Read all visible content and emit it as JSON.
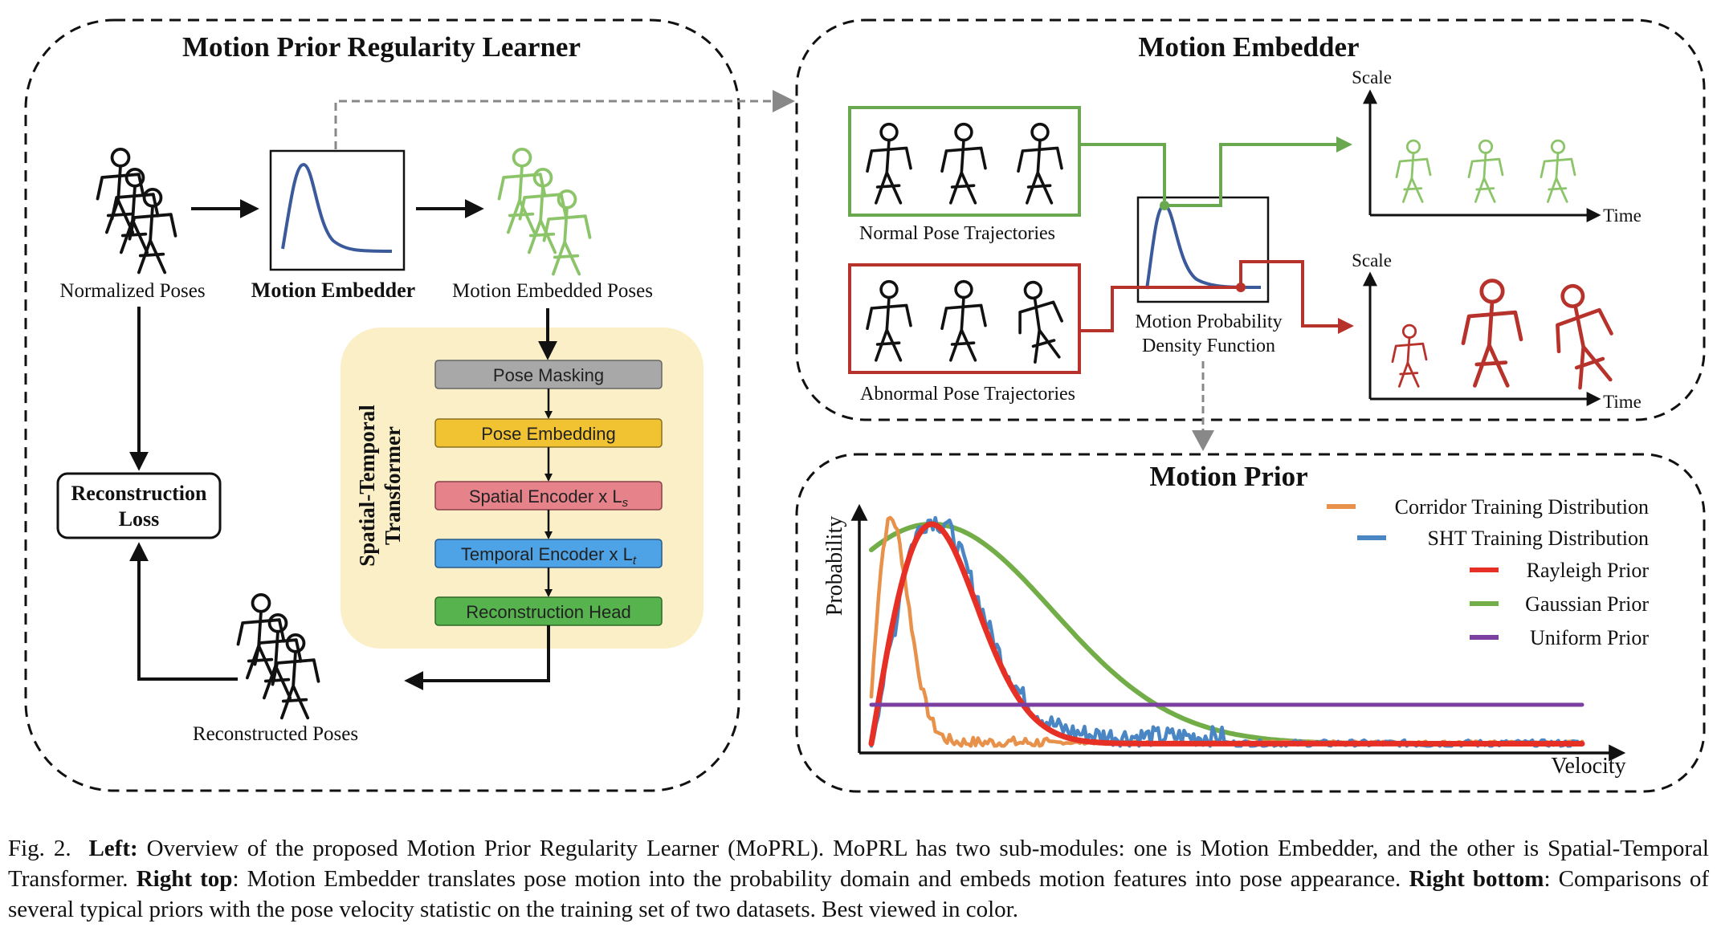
{
  "left_panel": {
    "title": "Motion Prior Regularity Learner",
    "normalized_poses": "Normalized Poses",
    "motion_embedder": "Motion Embedder",
    "motion_embedded_poses": "Motion Embedded Poses",
    "reconstruction_loss_line1": "Reconstruction",
    "reconstruction_loss_line2": "Loss",
    "reconstructed_poses": "Reconstructed Poses",
    "transformer_line1": "Spatial-Temporal",
    "transformer_line2": "Transformer",
    "blocks": [
      {
        "label": "Pose Masking",
        "sub": "",
        "color": "#a8a8a8"
      },
      {
        "label": "Pose Embedding",
        "sub": "",
        "color": "#f1c232"
      },
      {
        "label": "Spatial Encoder x L",
        "sub": "s",
        "color": "#e6838a"
      },
      {
        "label": "Temporal Encoder x L",
        "sub": "t",
        "color": "#4ea3e6"
      },
      {
        "label": "Reconstruction Head",
        "sub": "",
        "color": "#57b34d"
      }
    ]
  },
  "right_top": {
    "title": "Motion Embedder",
    "normal": "Normal Pose Trajectories",
    "abnormal": "Abnormal Pose Trajectories",
    "pdf_line1": "Motion Probability",
    "pdf_line2": "Density Function",
    "scale": "Scale",
    "time": "Time"
  },
  "right_bottom": {
    "title": "Motion Prior",
    "ylabel": "Probability",
    "xlabel": "Velocity"
  },
  "chart_data": {
    "type": "line",
    "title": "Motion Prior",
    "xlabel": "Velocity",
    "ylabel": "Probability",
    "legend_position": "top-right",
    "series": [
      {
        "name": "Corridor Training Distribution",
        "color": "#e8914a"
      },
      {
        "name": "SHT Training Distribution",
        "color": "#4a86c4"
      },
      {
        "name": "Rayleigh Prior",
        "color": "#e63025"
      },
      {
        "name": "Gaussian Prior",
        "color": "#72ad47"
      },
      {
        "name": "Uniform Prior",
        "color": "#7b3fa1"
      }
    ]
  },
  "caption": {
    "fig": "Fig. 2.",
    "left_label": "Left:",
    "left_text": "Overview of the proposed Motion Prior Regularity Learner (MoPRL). MoPRL has two sub-modules: one is Motion Embedder, and the other is Spatial-Temporal Transformer.",
    "right_top_label": "Right top",
    "right_top_text": ": Motion Embedder translates pose motion into the probability domain and embeds motion features into pose appearance.",
    "right_bottom_label": "Right bottom",
    "right_bottom_text": ": Comparisons of several typical priors with the pose velocity statistic on the training set of two datasets. Best viewed in color."
  }
}
